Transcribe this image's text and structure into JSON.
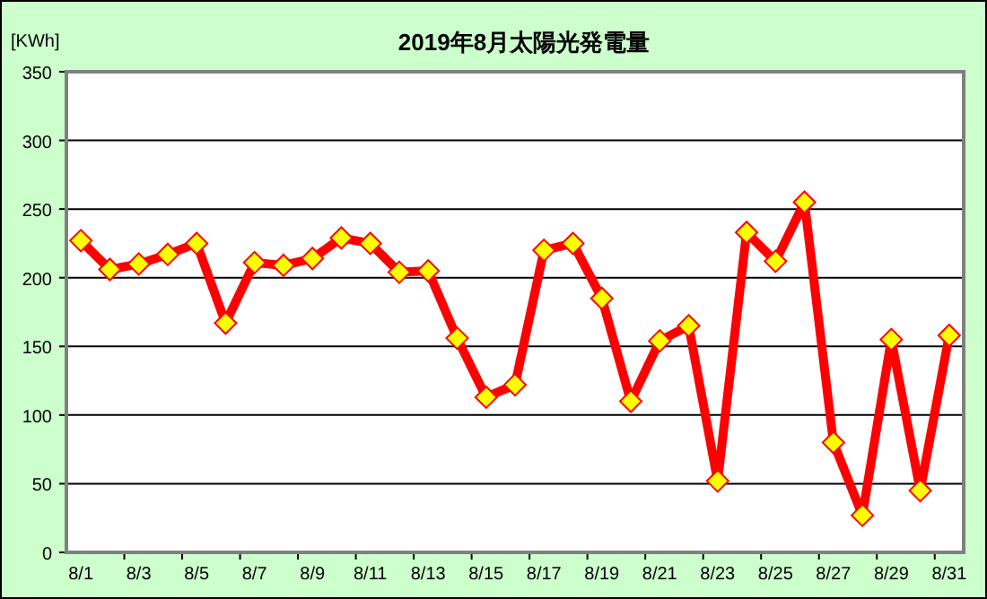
{
  "chart_data": {
    "type": "line",
    "title": "2019年8月太陽光発電量",
    "ylabel": "[KWh]",
    "categories": [
      "8/1",
      null,
      "8/3",
      null,
      "8/5",
      null,
      "8/7",
      null,
      "8/9",
      null,
      "8/11",
      null,
      "8/13",
      null,
      "8/15",
      null,
      "8/17",
      null,
      "8/19",
      null,
      "8/21",
      null,
      "8/23",
      null,
      "8/25",
      null,
      "8/27",
      null,
      "8/29",
      null,
      "8/31"
    ],
    "series": [
      {
        "color": "#ff0000",
        "values": [
          227,
          206,
          210,
          217,
          225,
          167,
          211,
          209,
          214,
          229,
          225,
          204,
          205,
          156,
          113,
          122,
          220,
          225,
          185,
          110,
          154,
          165,
          52,
          233,
          212,
          255,
          80,
          27,
          155,
          45,
          158
        ]
      }
    ],
    "ylim": [
      0,
      350
    ],
    "yticks": [
      0,
      50,
      100,
      150,
      200,
      250,
      300,
      350
    ],
    "grid": "y",
    "marker": "diamond",
    "line_style": "solid"
  }
}
